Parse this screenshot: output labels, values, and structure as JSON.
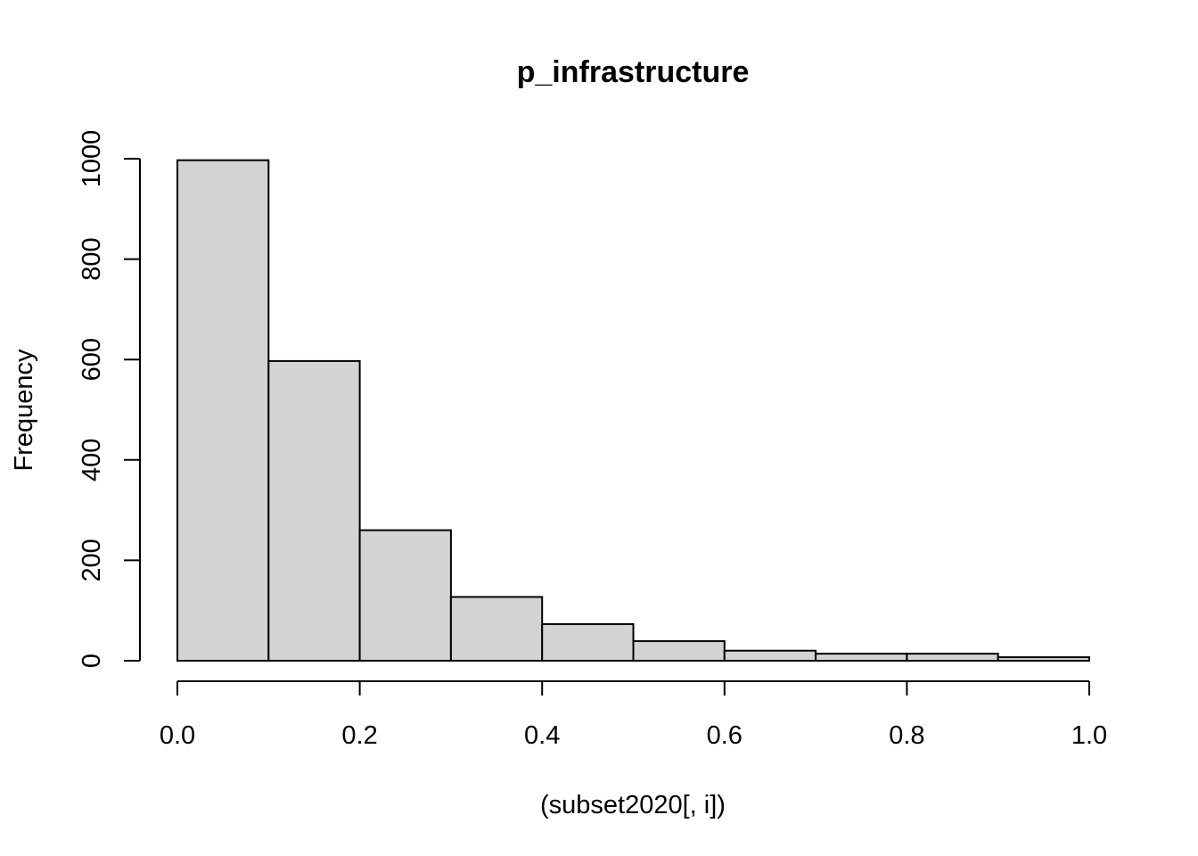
{
  "chart_data": {
    "type": "bar",
    "title": "p_infrastructure",
    "xlabel": "(subset2020[, i])",
    "ylabel": "Frequency",
    "bins": [
      {
        "from": 0.0,
        "to": 0.1,
        "count": 997
      },
      {
        "from": 0.1,
        "to": 0.2,
        "count": 597
      },
      {
        "from": 0.2,
        "to": 0.3,
        "count": 260
      },
      {
        "from": 0.3,
        "to": 0.4,
        "count": 127
      },
      {
        "from": 0.4,
        "to": 0.5,
        "count": 73
      },
      {
        "from": 0.5,
        "to": 0.6,
        "count": 39
      },
      {
        "from": 0.6,
        "to": 0.7,
        "count": 20
      },
      {
        "from": 0.7,
        "to": 0.8,
        "count": 14
      },
      {
        "from": 0.8,
        "to": 0.9,
        "count": 14
      },
      {
        "from": 0.9,
        "to": 1.0,
        "count": 7
      }
    ],
    "xlim": [
      0,
      1
    ],
    "ylim": [
      0,
      1000
    ],
    "x_ticks": [
      "0.0",
      "0.2",
      "0.4",
      "0.6",
      "0.8",
      "1.0"
    ],
    "y_ticks": [
      "0",
      "200",
      "400",
      "600",
      "800",
      "1000"
    ],
    "grid": false,
    "bar_color": "#d3d3d3"
  }
}
